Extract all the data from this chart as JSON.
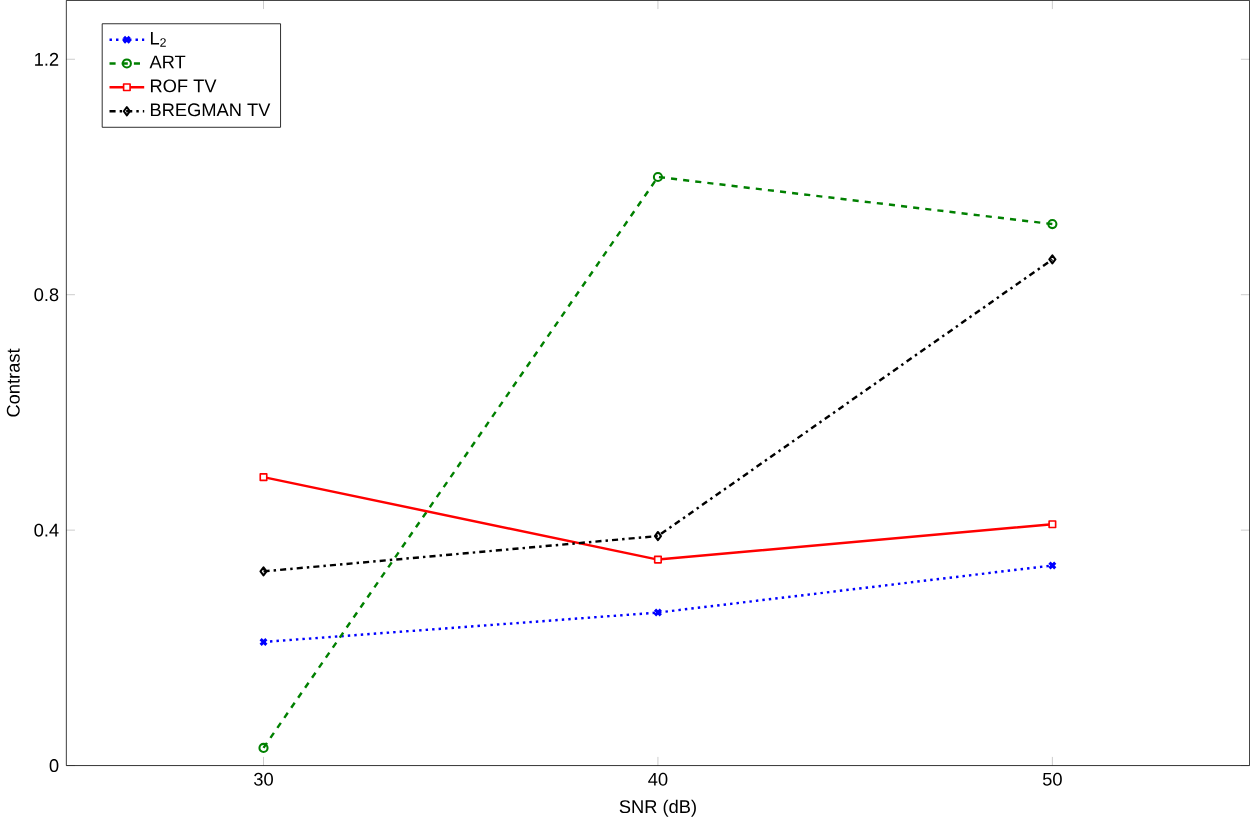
{
  "chart_data": {
    "type": "line",
    "xlabel": "SNR (dB)",
    "ylabel": "Contrast",
    "x": [
      30,
      40,
      50
    ],
    "xlim": [
      25,
      55
    ],
    "xticks": [
      30,
      40,
      50
    ],
    "ylim": [
      0,
      1.3
    ],
    "yticks": [
      0,
      0.4,
      0.8,
      1.2
    ],
    "legend": "top left",
    "grid": false,
    "series": [
      {
        "name": "L$_{2}$",
        "color": "#0000ff",
        "values": [
          0.21,
          0.26,
          0.34
        ],
        "marker": "cross",
        "line_style": "dotted"
      },
      {
        "name": "ART",
        "color": "#008000",
        "values": [
          0.03,
          1.0,
          0.92
        ],
        "marker": "circle",
        "line_style": "dashed"
      },
      {
        "name": "ROF TV",
        "color": "#ff0000",
        "values": [
          0.49,
          0.35,
          0.41
        ],
        "marker": "square",
        "line_style": "solid"
      },
      {
        "name": "BREGMAN TV",
        "color": "#000000",
        "values": [
          0.33,
          0.39,
          0.86
        ],
        "marker": "diamond",
        "line_style": "dashdot"
      }
    ]
  }
}
